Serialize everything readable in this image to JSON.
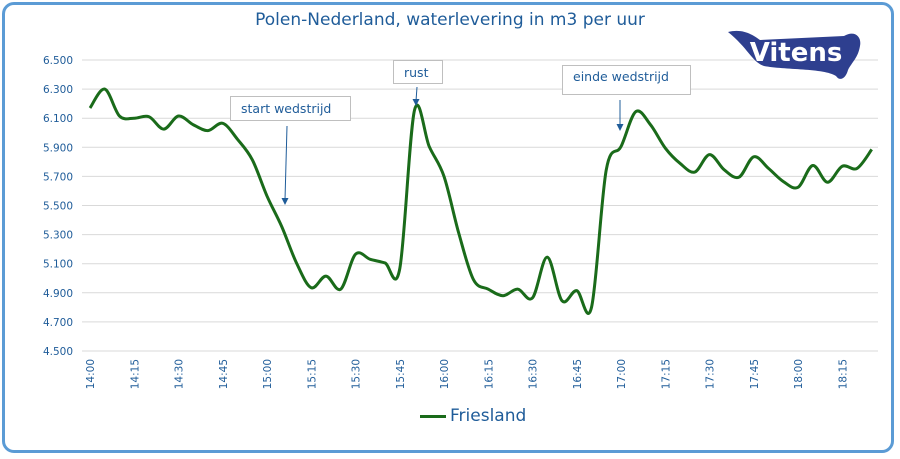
{
  "chart_data": {
    "type": "line",
    "title": "Polen-Nederland, waterlevering in m3 per uur",
    "xlabel": "",
    "ylabel": "",
    "ylim": [
      4500,
      6500
    ],
    "y_ticks": [
      "4.500",
      "4.700",
      "4.900",
      "5.100",
      "5.300",
      "5.500",
      "5.700",
      "5.900",
      "6.100",
      "6.300",
      "6.500"
    ],
    "y_tick_values": [
      4500,
      4700,
      4900,
      5100,
      5300,
      5500,
      5700,
      5900,
      6100,
      6300,
      6500
    ],
    "x_ticks": [
      "14:00",
      "14:15",
      "14:30",
      "14:45",
      "15:00",
      "15:15",
      "15:30",
      "15:45",
      "16:00",
      "16:15",
      "16:30",
      "16:45",
      "17:00",
      "17:15",
      "17:30",
      "17:45",
      "18:00",
      "18:15"
    ],
    "grid": true,
    "legend_position": "bottom",
    "x": [
      "14:00",
      "14:05",
      "14:10",
      "14:15",
      "14:20",
      "14:25",
      "14:30",
      "14:35",
      "14:40",
      "14:45",
      "14:50",
      "14:55",
      "15:00",
      "15:05",
      "15:10",
      "15:15",
      "15:20",
      "15:25",
      "15:30",
      "15:35",
      "15:40",
      "15:45",
      "15:50",
      "15:55",
      "16:00",
      "16:05",
      "16:10",
      "16:15",
      "16:20",
      "16:25",
      "16:30",
      "16:35",
      "16:40",
      "16:45",
      "16:50",
      "16:55",
      "17:00",
      "17:05",
      "17:10",
      "17:15",
      "17:20",
      "17:25",
      "17:30",
      "17:35",
      "17:40",
      "17:45",
      "17:50",
      "17:55",
      "18:00",
      "18:05",
      "18:10",
      "18:15",
      "18:20",
      "18:25"
    ],
    "series": [
      {
        "name": "Friesland",
        "color": "#1a6b1a",
        "values": [
          6170,
          6300,
          6115,
          6100,
          6110,
          6025,
          6115,
          6055,
          6015,
          6065,
          5955,
          5815,
          5565,
          5355,
          5105,
          4935,
          5015,
          4925,
          5165,
          5130,
          5105,
          5065,
          6155,
          5905,
          5700,
          5310,
          4990,
          4925,
          4880,
          4925,
          4865,
          5145,
          4845,
          4915,
          4800,
          5745,
          5905,
          6145,
          6055,
          5895,
          5790,
          5730,
          5850,
          5745,
          5695,
          5835,
          5755,
          5665,
          5625,
          5775,
          5660,
          5770,
          5755,
          5885
        ]
      }
    ],
    "annotations": [
      {
        "text": "start wedstrijd",
        "x": "15:05"
      },
      {
        "text": "rust",
        "x": "15:50"
      },
      {
        "text": "einde wedstrijd",
        "x": "17:00"
      }
    ]
  },
  "logo": {
    "text": "Vitens",
    "color": "#2e3f8f"
  },
  "colors": {
    "frame": "#5b9bd5",
    "text": "#1f5c99",
    "grid": "#d9d9d9",
    "arrow": "#1f5c99"
  }
}
